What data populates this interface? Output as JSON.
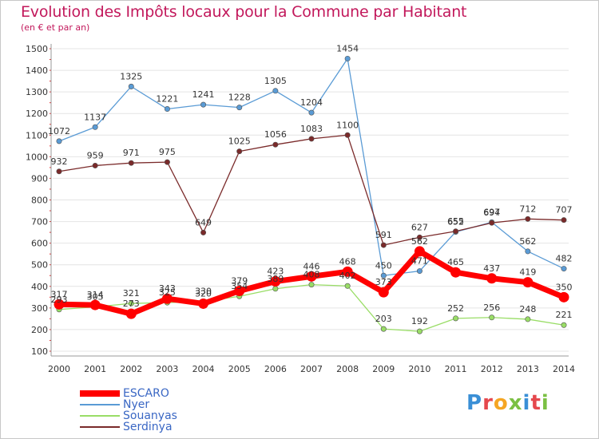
{
  "header": {
    "title": "Evolution des Impôts locaux pour la Commune par Habitant",
    "subtitle": "(en € et par an)"
  },
  "logo": {
    "text": "Proxiti",
    "colors": [
      "#3a8fd6",
      "#e5484d",
      "#f5a623",
      "#7bc043",
      "#3a8fd6",
      "#e5484d",
      "#7bc043"
    ]
  },
  "chart_data": {
    "type": "line",
    "title": "Evolution des Impôts locaux pour la Commune par Habitant",
    "subtitle": "(en € et par an)",
    "xlabel": "",
    "ylabel": "",
    "x": [
      2000,
      2001,
      2002,
      2003,
      2004,
      2005,
      2006,
      2007,
      2008,
      2009,
      2010,
      2011,
      2012,
      2013,
      2014
    ],
    "ylim": [
      100,
      1500
    ],
    "yticks": [
      100,
      200,
      300,
      400,
      500,
      600,
      700,
      800,
      900,
      1000,
      1100,
      1200,
      1300,
      1400,
      1500
    ],
    "grid": "horizontal",
    "legend_position": "bottom-left",
    "series": [
      {
        "name": "ESCARO",
        "color": "#ff0000",
        "values": [
          317,
          314,
          273,
          343,
          320,
          379,
          423,
          446,
          468,
          373,
          562,
          465,
          437,
          419,
          350
        ]
      },
      {
        "name": "Nyer",
        "color": "#5a9bd5",
        "values": [
          1072,
          1137,
          1325,
          1221,
          1241,
          1228,
          1305,
          1204,
          1454,
          450,
          471,
          652,
          697,
          562,
          482
        ]
      },
      {
        "name": "Souanyas",
        "color": "#99dd66",
        "values": [
          293,
          305,
          321,
          325,
          330,
          354,
          389,
          408,
          402,
          203,
          192,
          252,
          256,
          248,
          221
        ]
      },
      {
        "name": "Serdinya",
        "color": "#7a2a2a",
        "values": [
          932,
          959,
          971,
          975,
          649,
          1025,
          1056,
          1083,
          1100,
          591,
          627,
          655,
          694,
          712,
          707
        ]
      }
    ]
  }
}
